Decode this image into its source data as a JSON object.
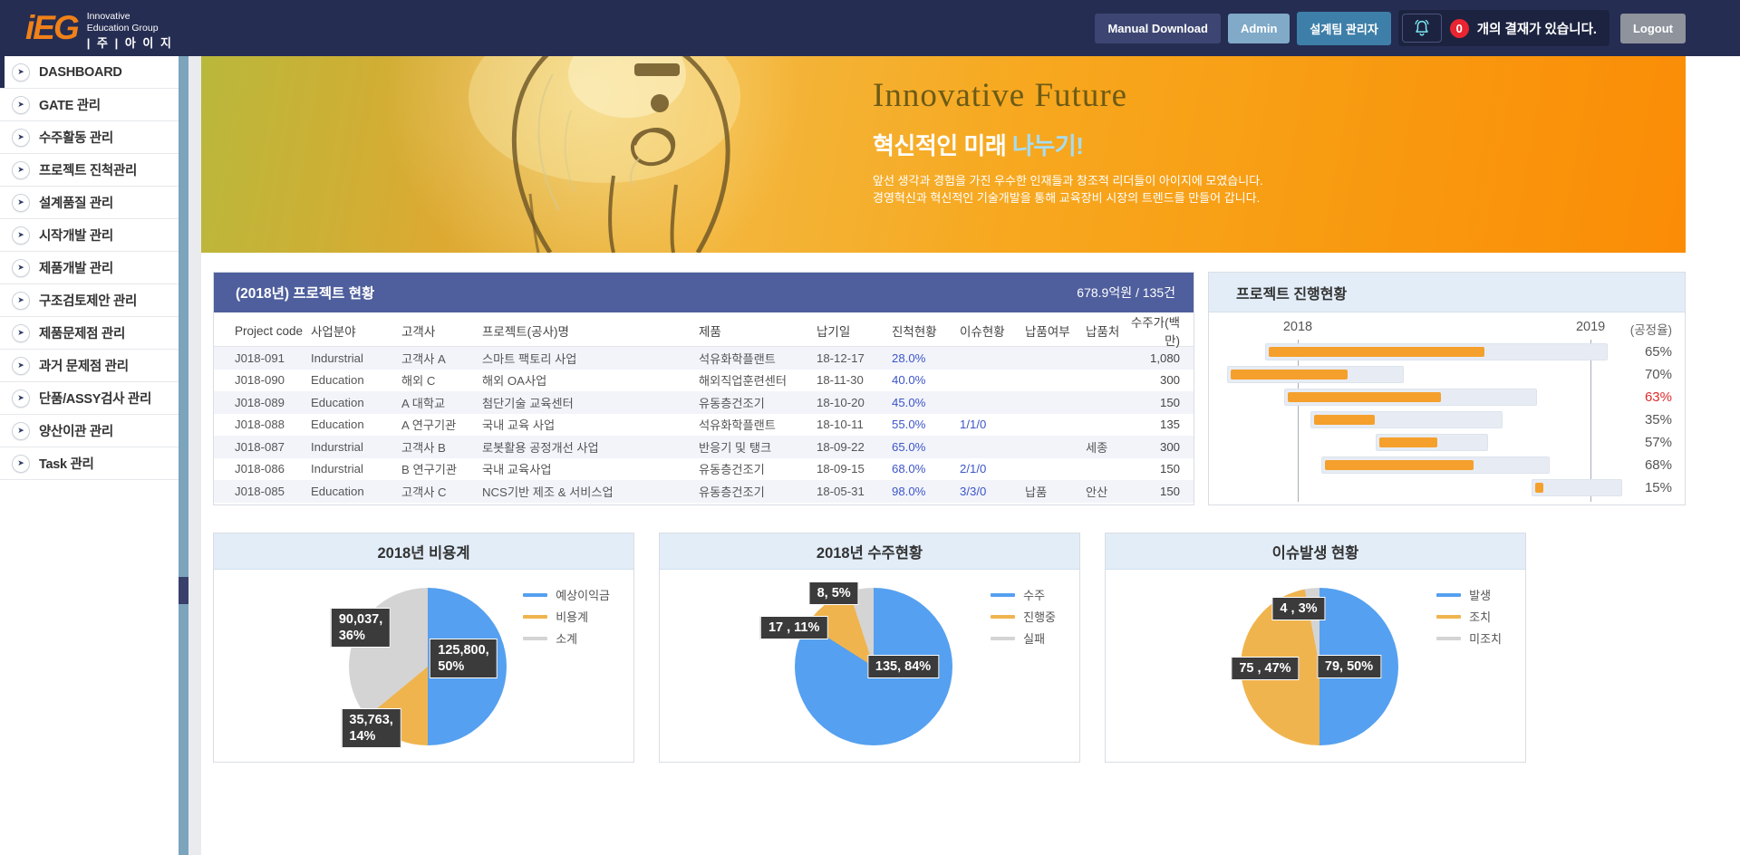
{
  "header": {
    "logo": {
      "mark": "iEG",
      "line1": "Innovative",
      "line2": "Education Group",
      "line3": "| 주 | 아 이 지"
    },
    "buttons": {
      "manual": "Manual Download",
      "admin": "Admin",
      "team": "설계팀 관리자",
      "logout": "Logout"
    },
    "notification": {
      "count": "0",
      "message": "개의 결재가 있습니다."
    }
  },
  "sidebar": {
    "items": [
      {
        "label": "DASHBOARD",
        "active": true
      },
      {
        "label": "GATE 관리",
        "active": false
      },
      {
        "label": "수주활동 관리",
        "active": false
      },
      {
        "label": "프로젝트 진척관리",
        "active": false
      },
      {
        "label": "설계품질 관리",
        "active": false
      },
      {
        "label": "시작개발 관리",
        "active": false
      },
      {
        "label": "제품개발 관리",
        "active": false
      },
      {
        "label": "구조검토제안 관리",
        "active": false
      },
      {
        "label": "제품문제점 관리",
        "active": false
      },
      {
        "label": "과거 문제점 관리",
        "active": false
      },
      {
        "label": "단품/ASSY검사 관리",
        "active": false
      },
      {
        "label": "양산이관 관리",
        "active": false
      },
      {
        "label": "Task 관리",
        "active": false
      }
    ]
  },
  "banner": {
    "title": "Innovative Future",
    "subtitle_white": "혁신적인 미래 ",
    "subtitle_accent": "나누기!",
    "desc_line1": "앞선 생각과 경험을 가진 우수한 인재들과 창조적 리더들이 아이지에 모였습니다.",
    "desc_line2": "경영혁신과 혁신적인 기술개발을 통해 교육장비 시장의 트렌드를 만들어 갑니다."
  },
  "project_table": {
    "title": "(2018년) 프로젝트 현황",
    "total": "678.9억원 / 135건",
    "columns": [
      "Project code",
      "사업분야",
      "고객사",
      "프로젝트(공사)명",
      "제품",
      "납기일",
      "진척현황",
      "이슈현황",
      "납품여부",
      "납품처",
      "수주가(백만)"
    ],
    "link_columns": [
      6,
      7
    ],
    "rows": [
      [
        "J018-091",
        "Indurstrial",
        "고객사 A",
        "스마트 팩토리 사업",
        "석유화학플랜트",
        "18-12-17",
        "28.0%",
        "",
        "",
        "",
        "1,080"
      ],
      [
        "J018-090",
        "Education",
        "해외 C",
        "해외 OA사업",
        "해외직업훈련센터",
        "18-11-30",
        "40.0%",
        "",
        "",
        "",
        "300"
      ],
      [
        "J018-089",
        "Education",
        "A 대학교",
        "첨단기술 교육센터",
        "유동층건조기",
        "18-10-20",
        "45.0%",
        "",
        "",
        "",
        "150"
      ],
      [
        "J018-088",
        "Education",
        "A 연구기관",
        "국내 교육 사업",
        "석유화학플랜트",
        "18-10-11",
        "55.0%",
        "1/1/0",
        "",
        "",
        "135"
      ],
      [
        "J018-087",
        "Indurstrial",
        "고객사 B",
        "로봇활용 공정개선 사업",
        "반응기 및 탱크",
        "18-09-22",
        "65.0%",
        "",
        "",
        "세종",
        "300"
      ],
      [
        "J018-086",
        "Indurstrial",
        "B 연구기관",
        "국내 교육사업",
        "유동층건조기",
        "18-09-15",
        "68.0%",
        "2/1/0",
        "",
        "",
        "150"
      ],
      [
        "J018-085",
        "Education",
        "고객사 C",
        "NCS기반 제조 & 서비스업",
        "유동층건조기",
        "18-05-31",
        "98.0%",
        "3/3/0",
        "납품",
        "안산",
        "150"
      ]
    ]
  },
  "chart_data": [
    {
      "type": "gantt",
      "title": "프로젝트 진행현황",
      "unit_label": "(공정율)",
      "bar_color": "#f5a02c",
      "track_color": "#e7ecf4",
      "gridlines": [
        {
          "label": "2018",
          "pos_pct": 18
        },
        {
          "label": "2019",
          "pos_pct": 89.8
        }
      ],
      "rows": [
        {
          "start_pct": 10.0,
          "end_pct": 94.0,
          "progress_pct": 65,
          "progress_label": "65%",
          "alert": false
        },
        {
          "start_pct": 0.7,
          "end_pct": 44.0,
          "progress_pct": 70,
          "progress_label": "70%",
          "alert": false
        },
        {
          "start_pct": 14.7,
          "end_pct": 76.7,
          "progress_pct": 63,
          "progress_label": "63%",
          "alert": true
        },
        {
          "start_pct": 21.1,
          "end_pct": 68.2,
          "progress_pct": 35,
          "progress_label": "35%",
          "alert": false
        },
        {
          "start_pct": 37.1,
          "end_pct": 64.7,
          "progress_pct": 57,
          "progress_label": "57%",
          "alert": false
        },
        {
          "start_pct": 23.8,
          "end_pct": 79.8,
          "progress_pct": 68,
          "progress_label": "68%",
          "alert": false
        },
        {
          "start_pct": 75.3,
          "end_pct": 97.5,
          "progress_pct": 15,
          "progress_label": "15%",
          "alert": false
        }
      ]
    },
    {
      "type": "pie",
      "title": "2018년 비용계",
      "legend_position": "top-right",
      "slices": [
        {
          "name": "예상이익금",
          "value": 125800,
          "pct": 50,
          "color": "#55a0f0",
          "label_lines": [
            "125,800,",
            "50%"
          ],
          "label_pos": [
            59.5,
            46
          ]
        },
        {
          "name": "비용계",
          "value": 35763,
          "pct": 14,
          "color": "#f0b44e",
          "label_lines": [
            "35,763,",
            "14%"
          ],
          "label_pos": [
            37.5,
            82
          ]
        },
        {
          "name": "소계",
          "value": 90037,
          "pct": 36,
          "color": "#d4d4d4",
          "label_lines": [
            "90,037,",
            "36%"
          ],
          "label_pos": [
            35,
            30
          ]
        }
      ]
    },
    {
      "type": "pie",
      "title": "2018년 수주현황",
      "legend_position": "top-right",
      "slices": [
        {
          "name": "수주",
          "value": 135,
          "pct": 84,
          "color": "#55a0f0",
          "label_lines": [
            "135, 84%"
          ],
          "label_pos": [
            58,
            50
          ]
        },
        {
          "name": "진행중",
          "value": 17,
          "pct": 11,
          "color": "#f0b44e",
          "label_lines": [
            "17 , 11%"
          ],
          "label_pos": [
            32,
            30
          ]
        },
        {
          "name": "실패",
          "value": 8,
          "pct": 5,
          "color": "#d4d4d4",
          "label_lines": [
            "8, 5%"
          ],
          "label_pos": [
            41.5,
            12
          ]
        }
      ]
    },
    {
      "type": "pie",
      "title": "이슈발생 현황",
      "legend_position": "top-right",
      "slices": [
        {
          "name": "발생",
          "value": 79,
          "pct": 50,
          "color": "#55a0f0",
          "label_lines": [
            "79, 50%"
          ],
          "label_pos": [
            58,
            50
          ]
        },
        {
          "name": "조치",
          "value": 75,
          "pct": 47,
          "color": "#f0b44e",
          "label_lines": [
            "75 , 47%"
          ],
          "label_pos": [
            38,
            51
          ]
        },
        {
          "name": "미조치",
          "value": 4,
          "pct": 3,
          "color": "#d4d4d4",
          "label_lines": [
            "4 , 3%"
          ],
          "label_pos": [
            46,
            20
          ]
        }
      ]
    }
  ]
}
